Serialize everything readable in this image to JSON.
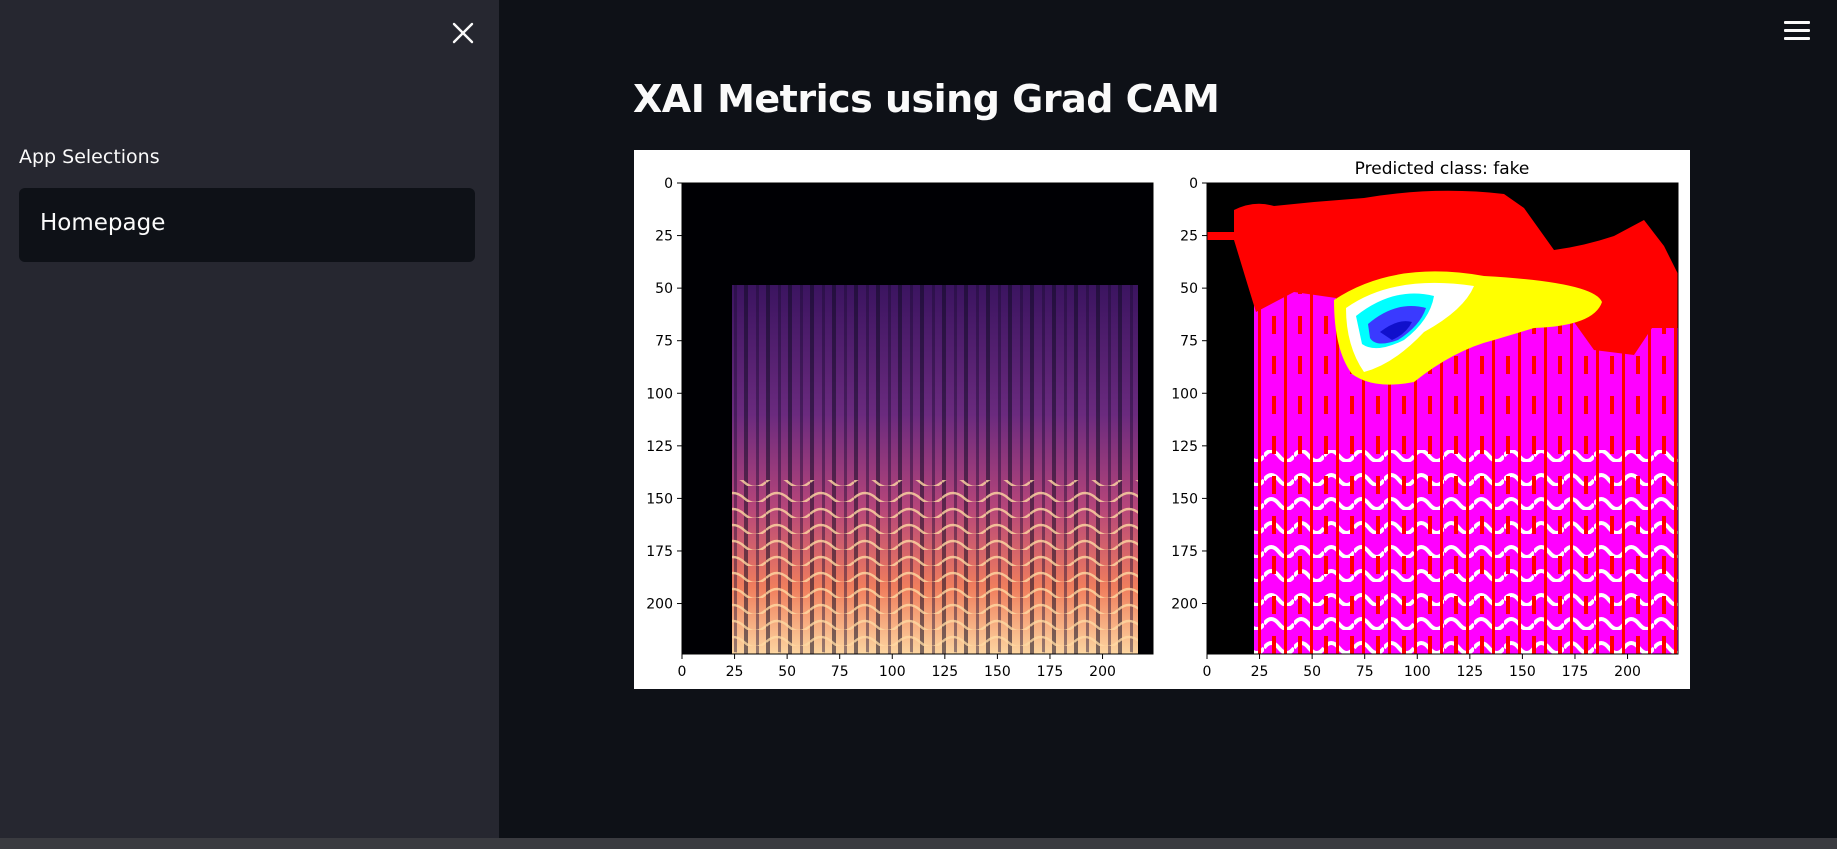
{
  "sidebar": {
    "close_icon": "close-icon",
    "section_label": "App Selections",
    "select": {
      "value": "Homepage",
      "caret_icon": "caret-down-icon"
    }
  },
  "header": {
    "menu_icon": "hamburger-menu-icon"
  },
  "main": {
    "title": "XAI Metrics using Grad CAM"
  },
  "chart_data": [
    {
      "type": "heatmap",
      "title": "",
      "xlabel": "",
      "ylabel": "",
      "xlim": [
        0,
        224
      ],
      "ylim": [
        224,
        0
      ],
      "x_ticks": [
        "0",
        "25",
        "50",
        "75",
        "100",
        "125",
        "150",
        "175",
        "200"
      ],
      "y_ticks": [
        "0",
        "25",
        "50",
        "75",
        "100",
        "125",
        "150",
        "175",
        "200"
      ],
      "colormap": "magma"
    },
    {
      "type": "heatmap",
      "title": "Predicted class: fake",
      "xlabel": "",
      "ylabel": "",
      "xlim": [
        0,
        224
      ],
      "ylim": [
        224,
        0
      ],
      "x_ticks": [
        "0",
        "25",
        "50",
        "75",
        "100",
        "125",
        "150",
        "175",
        "200"
      ],
      "y_ticks": [
        "0",
        "25",
        "50",
        "75",
        "100",
        "125",
        "150",
        "175",
        "200"
      ],
      "colormap": "grad-cam overlay"
    }
  ]
}
